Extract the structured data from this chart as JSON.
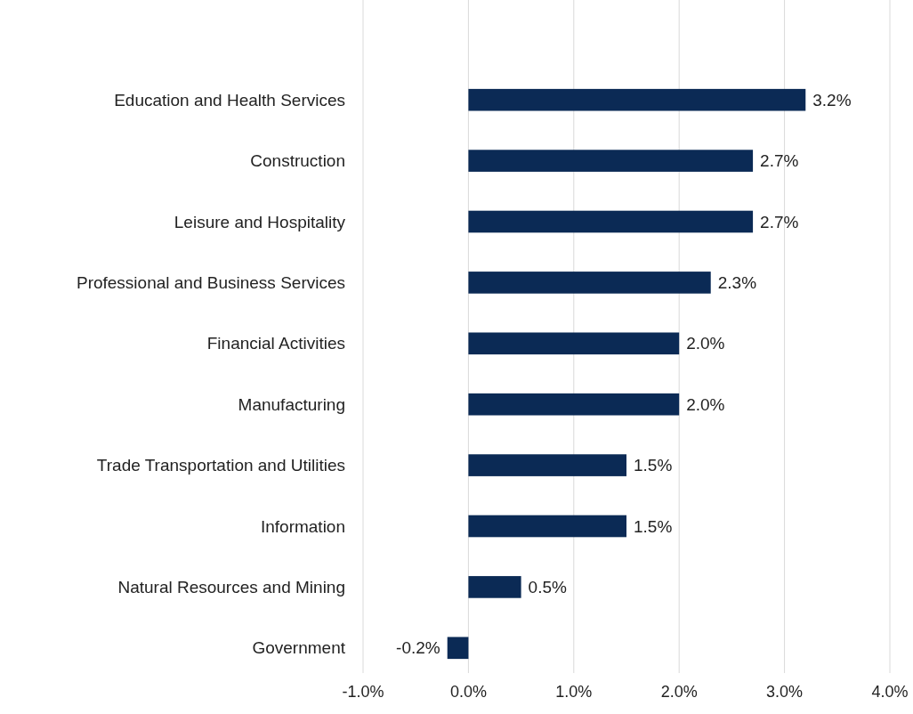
{
  "chart_data": {
    "type": "bar",
    "orientation": "horizontal",
    "categories": [
      "Education and Health Services",
      "Construction",
      "Leisure and Hospitality",
      "Professional and Business Services",
      "Financial Activities",
      "Manufacturing",
      "Trade Transportation and Utilities",
      "Information",
      "Natural Resources and Mining",
      "Government"
    ],
    "values": [
      3.2,
      2.7,
      2.7,
      2.3,
      2.0,
      2.0,
      1.5,
      1.5,
      0.5,
      -0.2
    ],
    "value_labels": [
      "3.2%",
      "2.7%",
      "2.7%",
      "2.3%",
      "2.0%",
      "2.0%",
      "1.5%",
      "1.5%",
      "0.5%",
      "-0.2%"
    ],
    "color": "#0b2a55",
    "xlim": [
      -1,
      4
    ],
    "xticks": [
      {
        "value": -1,
        "label": "-1.0%"
      },
      {
        "value": 0,
        "label": "0.0%"
      },
      {
        "value": 1,
        "label": "1.0%"
      },
      {
        "value": 2,
        "label": "2.0%"
      },
      {
        "value": 3,
        "label": "3.0%"
      },
      {
        "value": 4,
        "label": "4.0%"
      }
    ],
    "grid": "x"
  }
}
